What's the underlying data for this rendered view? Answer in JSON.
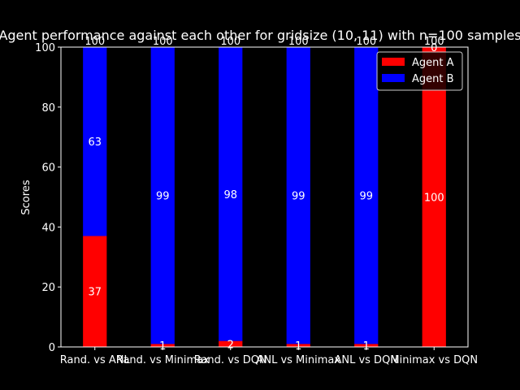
{
  "chart_data": {
    "type": "bar",
    "stacked": true,
    "title": "Agent performance against each other for gridsize (10, 11) with n=100 samples",
    "xlabel": "",
    "ylabel": "Scores",
    "ylim": [
      0,
      100
    ],
    "yticks": [
      0,
      20,
      40,
      60,
      80,
      100
    ],
    "grid": false,
    "legend_position": "top-right",
    "categories": [
      "Rand. vs ANL",
      "Rand. vs Minimax",
      "Rand. vs DQN",
      "ANL vs Minimax",
      "ANL vs DQN",
      "Minimax vs DQN"
    ],
    "series": [
      {
        "name": "Agent A",
        "color": "#ff0000",
        "values": [
          37,
          1,
          2,
          1,
          1,
          100
        ]
      },
      {
        "name": "Agent B",
        "color": "#0000ff",
        "values": [
          63,
          99,
          98,
          99,
          99,
          0
        ]
      }
    ],
    "totals": [
      100,
      100,
      100,
      100,
      100,
      100
    ],
    "axis_color": "#ffffff",
    "background": "#000000"
  }
}
